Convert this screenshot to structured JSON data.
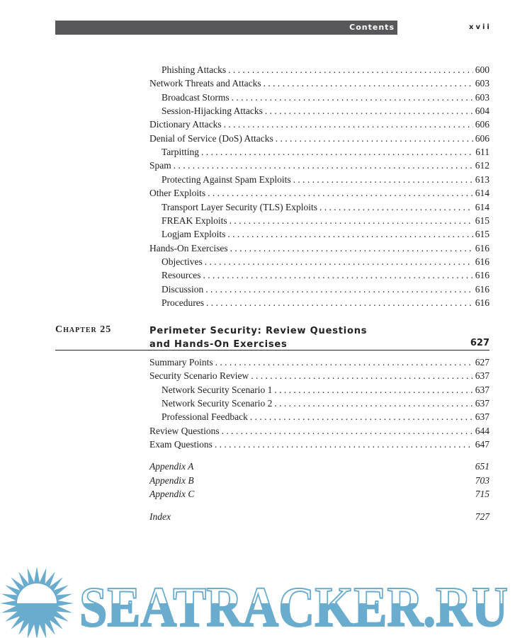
{
  "header": {
    "section": "Contents",
    "page_number": "xvii"
  },
  "entries_before": [
    {
      "level": 2,
      "title": "Phishing Attacks",
      "page": "600"
    },
    {
      "level": 1,
      "title": "Network Threats and Attacks",
      "page": "603"
    },
    {
      "level": 2,
      "title": "Broadcast Storms",
      "page": "603"
    },
    {
      "level": 2,
      "title": "Session-Hijacking Attacks",
      "page": "604"
    },
    {
      "level": 1,
      "title": "Dictionary Attacks",
      "page": "606"
    },
    {
      "level": 1,
      "title": "Denial of Service (DoS) Attacks",
      "page": "606"
    },
    {
      "level": 2,
      "title": "Tarpitting",
      "page": "611"
    },
    {
      "level": 1,
      "title": "Spam",
      "page": "612"
    },
    {
      "level": 2,
      "title": "Protecting Against Spam Exploits",
      "page": "613"
    },
    {
      "level": 1,
      "title": "Other Exploits",
      "page": "614"
    },
    {
      "level": 2,
      "title": "Transport Layer Security (TLS) Exploits",
      "page": "614"
    },
    {
      "level": 2,
      "title": "FREAK Exploits",
      "page": "615"
    },
    {
      "level": 2,
      "title": "Logjam Exploits",
      "page": "615"
    },
    {
      "level": 1,
      "title": "Hands-On Exercises",
      "page": "616"
    },
    {
      "level": 2,
      "title": "Objectives",
      "page": "616"
    },
    {
      "level": 2,
      "title": "Resources",
      "page": "616"
    },
    {
      "level": 2,
      "title": "Discussion",
      "page": "616"
    },
    {
      "level": 2,
      "title": "Procedures",
      "page": "616"
    }
  ],
  "chapter": {
    "label": "Chapter 25",
    "title_line1": "Perimeter Security: Review Questions",
    "title_line2": "and Hands-On Exercises",
    "page": "627"
  },
  "entries_after": [
    {
      "level": 1,
      "title": "Summary Points",
      "page": "627"
    },
    {
      "level": 1,
      "title": "Security Scenario Review",
      "page": "637"
    },
    {
      "level": 2,
      "title": "Network Security Scenario 1",
      "page": "637"
    },
    {
      "level": 2,
      "title": "Network Security Scenario 2",
      "page": "637"
    },
    {
      "level": 2,
      "title": "Professional Feedback",
      "page": "637"
    },
    {
      "level": 1,
      "title": "Review Questions",
      "page": "644"
    },
    {
      "level": 1,
      "title": "Exam Questions",
      "page": "647"
    }
  ],
  "appendices": [
    {
      "title": "Appendix A",
      "page": "651"
    },
    {
      "title": "Appendix B",
      "page": "703"
    },
    {
      "title": "Appendix C",
      "page": "715"
    }
  ],
  "index": {
    "title": "Index",
    "page": "727"
  },
  "watermark": {
    "text": "SEATRACKER.RU",
    "color": "#6aaccd"
  }
}
